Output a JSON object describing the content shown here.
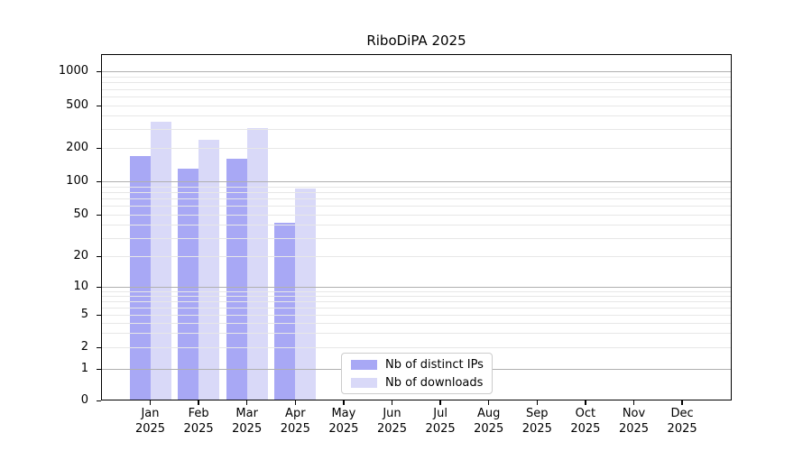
{
  "title": "RiboDiPA 2025",
  "chart_data": {
    "type": "bar",
    "title": "RiboDiPA 2025",
    "x_months": [
      "Jan",
      "Feb",
      "Mar",
      "Apr",
      "May",
      "Jun",
      "Jul",
      "Aug",
      "Sep",
      "Oct",
      "Nov",
      "Dec"
    ],
    "x_year": "2025",
    "categories": [
      "Jan 2025",
      "Feb 2025",
      "Mar 2025",
      "Apr 2025",
      "May 2025",
      "Jun 2025",
      "Jul 2025",
      "Aug 2025",
      "Sep 2025",
      "Oct 2025",
      "Nov 2025",
      "Dec 2025"
    ],
    "series": [
      {
        "name": "Nb of distinct IPs",
        "color": "#a8a8f5",
        "values": [
          170,
          130,
          160,
          42,
          null,
          null,
          null,
          null,
          null,
          null,
          null,
          null
        ]
      },
      {
        "name": "Nb of downloads",
        "color": "#d9d9f8",
        "values": [
          355,
          240,
          310,
          86,
          null,
          null,
          null,
          null,
          null,
          null,
          null,
          null
        ]
      }
    ],
    "y_ticks": [
      0,
      1,
      2,
      5,
      10,
      20,
      50,
      100,
      200,
      500,
      1000
    ],
    "y_scale": "log",
    "ylim": [
      0,
      1400
    ],
    "grid": true,
    "legend_position": "lower center"
  },
  "colors": {
    "major_grid": "#b0b0b0",
    "minor_grid": "#e7e7e7",
    "axis": "#000000",
    "text": "#000000",
    "background": "#ffffff"
  }
}
